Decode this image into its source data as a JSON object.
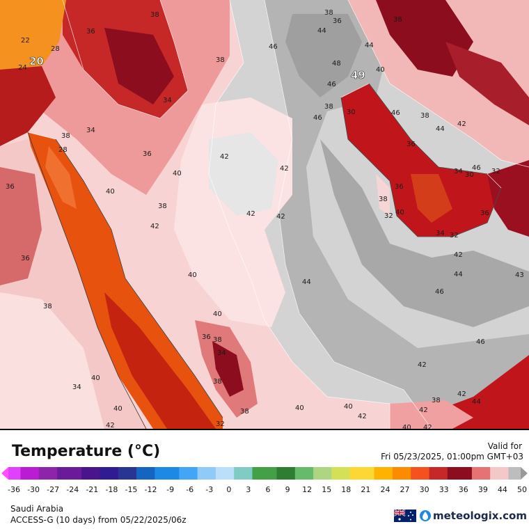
{
  "map": {
    "region": "Saudi Arabia",
    "variable": "Temperature (°C)",
    "max_label": "49",
    "min_label": "20",
    "contour_labels": [
      "22",
      "20",
      "24",
      "28",
      "34",
      "38",
      "36",
      "34",
      "38",
      "34",
      "38",
      "36",
      "28",
      "36",
      "40",
      "38",
      "42",
      "40",
      "42",
      "42",
      "42",
      "40",
      "36",
      "40",
      "38",
      "38",
      "36",
      "34",
      "38",
      "34",
      "40",
      "40",
      "40",
      "42",
      "42",
      "40",
      "38",
      "42",
      "40",
      "38",
      "36",
      "44",
      "46",
      "44",
      "48",
      "49",
      "46",
      "40",
      "46",
      "44",
      "38",
      "46",
      "38",
      "42",
      "46",
      "36",
      "34",
      "36",
      "30",
      "32",
      "38",
      "40",
      "32",
      "30",
      "34",
      "36",
      "32",
      "42",
      "44",
      "46",
      "43",
      "46",
      "44",
      "42",
      "38",
      "42",
      "44",
      "42",
      "42",
      "32",
      "38"
    ],
    "colors": {
      "hot": "#c0151a",
      "very_hot": "#8b0d1e",
      "warm": "#f08080",
      "pale": "#fbe0e0",
      "grey_light": "#d3d3d3",
      "grey_dark": "#9f9f9f",
      "orange": "#e8520f",
      "orange_light": "#f5921f"
    }
  },
  "legend": {
    "title": "Temperature (°C)",
    "ticks": [
      "-36",
      "-30",
      "-27",
      "-24",
      "-21",
      "-18",
      "-15",
      "-12",
      "-9",
      "-6",
      "-3",
      "0",
      "3",
      "6",
      "9",
      "12",
      "15",
      "18",
      "21",
      "24",
      "27",
      "30",
      "33",
      "36",
      "39",
      "44",
      "50"
    ],
    "min": -36,
    "max": 50
  },
  "valid": {
    "label": "Valid for",
    "time": "Fri 05/23/2025, 01:00pm GMT+03"
  },
  "footer": {
    "region": "Saudi Arabia",
    "model": "ACCESS-G (10 days) from 05/22/2025/06z",
    "brand": "meteologix.com",
    "flag_icon": "australian-flag-icon",
    "logo_icon": "meteologix-drop-icon"
  }
}
